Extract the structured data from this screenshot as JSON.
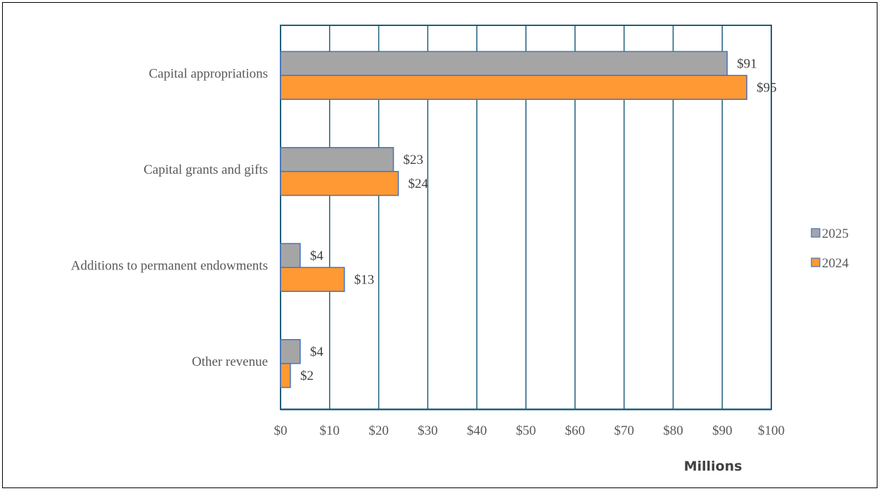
{
  "chart_data": {
    "type": "bar",
    "orientation": "horizontal",
    "categories": [
      "Capital appropriations",
      "Capital grants and gifts",
      "Additions to permanent endowments",
      "Other revenue"
    ],
    "series": [
      {
        "name": "2025",
        "values": [
          91,
          23,
          4,
          4
        ],
        "labels": [
          "$91",
          "$23",
          "$4",
          "$4"
        ],
        "color": "#A5A5A5"
      },
      {
        "name": "2024",
        "values": [
          95,
          24,
          13,
          2
        ],
        "labels": [
          "$95",
          "$24",
          "$13",
          "$2"
        ],
        "color": "#FF9933"
      }
    ],
    "xlim": [
      0,
      100
    ],
    "x_ticks": [
      0,
      10,
      20,
      30,
      40,
      50,
      60,
      70,
      80,
      90,
      100
    ],
    "x_tick_labels": [
      "$0",
      "$10",
      "$20",
      "$30",
      "$40",
      "$50",
      "$60",
      "$70",
      "$80",
      "$90",
      "$100"
    ],
    "unit_label": "Millions",
    "grid": true,
    "legend_position": "right",
    "colors": {
      "bar_border": "#4472C4",
      "grid": "#1F5F7A"
    }
  }
}
